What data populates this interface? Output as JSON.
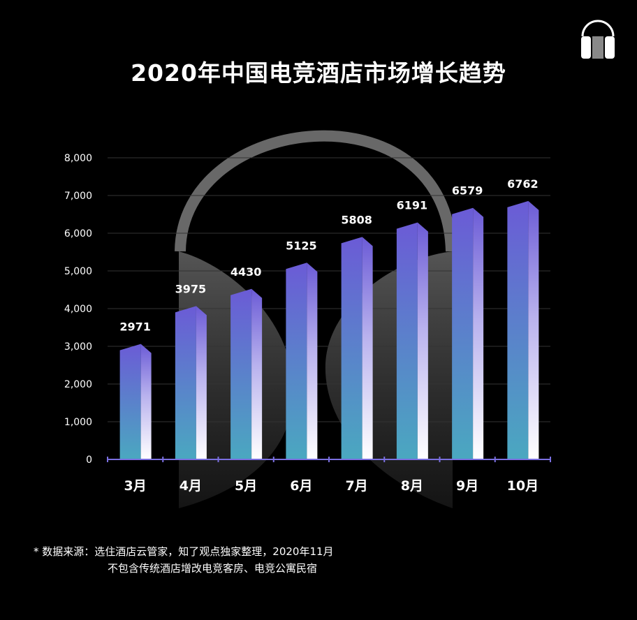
{
  "footnote": {
    "prefix": "* 数据来源：",
    "source": "选住酒店云管家，知了观点独家整理，2020年11月",
    "note": "不包含传统酒店增改电竞客房、电竞公寓民宿"
  },
  "colors": {
    "background": "#000000",
    "bar_top": "#6c5fd8",
    "bar_bottom": "#4aa6c2",
    "bar_side_light": "#ffffff",
    "axis": "#7a6fe0",
    "grid": "#333333",
    "headset_overlay": "#8a8a8a"
  },
  "chart_data": {
    "type": "bar",
    "title": "2020年中国电竞酒店市场增长趋势",
    "xlabel": "",
    "ylabel": "",
    "ylim": [
      0,
      8000
    ],
    "yticks": [
      0,
      1000,
      2000,
      3000,
      4000,
      5000,
      6000,
      7000,
      8000
    ],
    "ytick_labels": [
      "0",
      "1,000",
      "2,000",
      "3,000",
      "4,000",
      "5,000",
      "6,000",
      "7,000",
      "8,000"
    ],
    "categories": [
      "3月",
      "4月",
      "5月",
      "6月",
      "7月",
      "8月",
      "9月",
      "10月"
    ],
    "values": [
      2971,
      3975,
      4430,
      5125,
      5808,
      6191,
      6579,
      6762
    ],
    "data_labels": [
      "2971",
      "3975",
      "4430",
      "5125",
      "5808",
      "6191",
      "6579",
      "6762"
    ],
    "grid": true,
    "legend": "none"
  }
}
